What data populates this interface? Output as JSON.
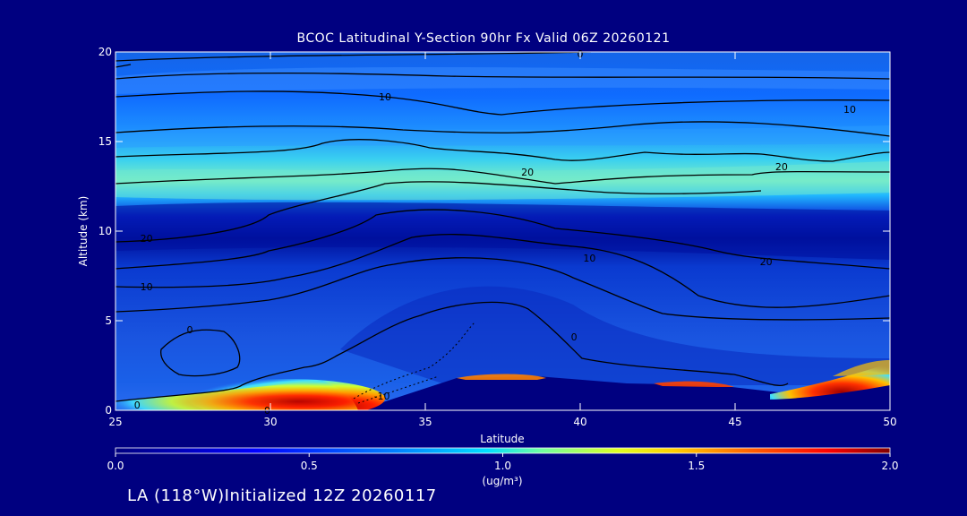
{
  "chart_data": {
    "type": "heatmap",
    "title": "BCOC Latitudinal Y-Section 90hr  Fx Valid 06Z 20260121",
    "xlabel": "Latitude",
    "ylabel": "Altitude (km)",
    "xlim": [
      25,
      50
    ],
    "ylim": [
      0,
      20
    ],
    "xticks": [
      25,
      30,
      35,
      40,
      45,
      50
    ],
    "yticks": [
      0,
      5,
      10,
      15,
      20
    ],
    "colorbar": {
      "label": "(ug/m³)",
      "range": [
        0.0,
        2.0
      ],
      "ticks": [
        "0.0",
        "0.5",
        "1.0",
        "1.5",
        "2.0"
      ],
      "orientation": "horizontal"
    },
    "contours": [
      {
        "label": "0",
        "x": 40,
        "y": 19.9
      },
      {
        "label": "10",
        "x": 33.7,
        "y": 17.5
      },
      {
        "label": "10",
        "x": 48.7,
        "y": 16.8
      },
      {
        "label": "20",
        "x": 38.3,
        "y": 13.3
      },
      {
        "label": "20",
        "x": 46.5,
        "y": 13.6
      },
      {
        "label": "20",
        "x": 26,
        "y": 9.6
      },
      {
        "label": "10",
        "x": 40.3,
        "y": 8.5
      },
      {
        "label": "20",
        "x": 46,
        "y": 8.3
      },
      {
        "label": "10",
        "x": 26,
        "y": 6.9
      },
      {
        "label": "0",
        "x": 27.4,
        "y": 4.5
      },
      {
        "label": "0",
        "x": 39.8,
        "y": 4.1
      },
      {
        "label": "0",
        "x": 25.7,
        "y": 0.3
      },
      {
        "label": "0",
        "x": 29.9,
        "y": 0
      },
      {
        "label": "-10",
        "x": 33.6,
        "y": 0.8
      }
    ],
    "dominant_values": {
      "upper_layer_15_to_20km": 0.5,
      "band_12_to_14km": 0.9,
      "layer_9_to_11km": 0.1,
      "lower_troposphere_2_to_9km": 0.3,
      "near_surface_30_to_33_lat": 2.0,
      "near_surface_46_to_50_lat": 2.0
    }
  },
  "footer": "LA (118°W)Initialized 12Z 20260117"
}
